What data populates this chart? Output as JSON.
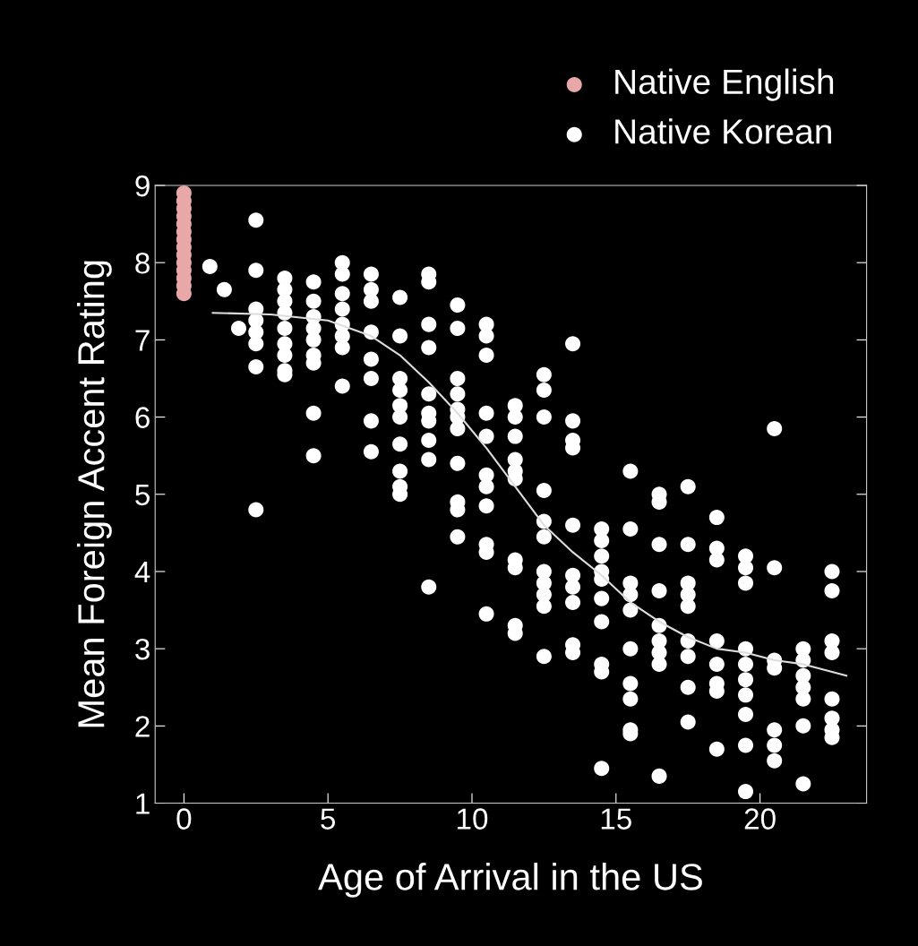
{
  "chart_data": {
    "type": "scatter",
    "xlabel": "Age of Arrival in the US",
    "ylabel": "Mean Foreign Accent Rating",
    "xlim": [
      -1.0,
      23.7
    ],
    "xticks": [
      0,
      5,
      10,
      15,
      20
    ],
    "ylim": [
      1,
      9
    ],
    "yticks": [
      1,
      2,
      3,
      4,
      5,
      6,
      7,
      8,
      9
    ],
    "marker": "circle",
    "legend": "top right",
    "grid": false,
    "series": [
      {
        "name": "Native English",
        "color": "#e8a8a8",
        "x": [
          0,
          0,
          0,
          0,
          0,
          0,
          0,
          0,
          0,
          0,
          0,
          0,
          0,
          0
        ],
        "values": [
          8.9,
          8.8,
          8.7,
          8.6,
          8.5,
          8.4,
          8.3,
          8.2,
          8.1,
          8.0,
          7.9,
          7.8,
          7.7,
          7.6
        ]
      },
      {
        "name": "Native Korean",
        "color": "#ffffff",
        "x": [
          0.9,
          1.4,
          1.9,
          2.5,
          2.5,
          2.5,
          2.5,
          2.5,
          2.5,
          2.5,
          2.5,
          3.5,
          3.5,
          3.5,
          3.5,
          3.5,
          3.5,
          3.5,
          3.5,
          3.5,
          4.5,
          4.5,
          4.5,
          4.5,
          4.5,
          4.5,
          4.5,
          4.5,
          4.5,
          5.5,
          5.5,
          5.5,
          5.5,
          5.5,
          5.5,
          5.5,
          5.5,
          6.5,
          6.5,
          6.5,
          6.5,
          6.5,
          6.5,
          6.5,
          6.5,
          7.5,
          7.5,
          7.5,
          7.5,
          7.5,
          7.5,
          7.5,
          7.5,
          7.5,
          7.5,
          8.5,
          8.5,
          8.5,
          8.5,
          8.5,
          8.5,
          8.5,
          8.5,
          8.5,
          8.5,
          9.5,
          9.5,
          9.5,
          9.5,
          9.5,
          9.5,
          9.5,
          9.5,
          9.5,
          9.5,
          9.5,
          10.5,
          10.5,
          10.5,
          10.5,
          10.5,
          10.5,
          10.5,
          10.5,
          10.5,
          10.5,
          10.5,
          11.5,
          11.5,
          11.5,
          11.5,
          11.5,
          11.5,
          11.5,
          11.5,
          11.5,
          11.5,
          12.5,
          12.5,
          12.5,
          12.5,
          12.5,
          12.5,
          12.5,
          12.5,
          12.5,
          12.5,
          12.5,
          13.5,
          13.5,
          13.5,
          13.5,
          13.5,
          13.5,
          13.5,
          13.5,
          13.5,
          13.5,
          14.5,
          14.5,
          14.5,
          14.5,
          14.5,
          14.5,
          14.5,
          14.5,
          14.5,
          14.5,
          15.5,
          15.5,
          15.5,
          15.5,
          15.5,
          15.5,
          15.5,
          15.5,
          15.5,
          15.5,
          16.5,
          16.5,
          16.5,
          16.5,
          16.5,
          16.5,
          16.5,
          16.5,
          16.5,
          17.5,
          17.5,
          17.5,
          17.5,
          17.5,
          17.5,
          17.5,
          17.5,
          17.5,
          18.5,
          18.5,
          18.5,
          18.5,
          18.5,
          18.5,
          18.5,
          18.5,
          19.5,
          19.5,
          19.5,
          19.5,
          19.5,
          19.5,
          19.5,
          19.5,
          19.5,
          19.5,
          20.5,
          20.5,
          20.5,
          20.5,
          20.5,
          20.5,
          20.5,
          21.5,
          21.5,
          21.5,
          21.5,
          21.5,
          21.5,
          21.5,
          22.5,
          22.5,
          22.5,
          22.5,
          22.5,
          22.5,
          22.5,
          22.5
        ],
        "values": [
          7.95,
          7.65,
          7.15,
          8.55,
          7.9,
          7.4,
          7.25,
          7.1,
          6.95,
          6.65,
          4.8,
          7.8,
          7.65,
          7.5,
          7.35,
          7.15,
          6.95,
          6.8,
          6.6,
          6.55,
          7.75,
          7.5,
          7.3,
          7.15,
          7.0,
          6.8,
          6.7,
          6.05,
          5.5,
          8.0,
          7.85,
          7.6,
          7.4,
          7.2,
          7.05,
          6.9,
          6.4,
          7.85,
          7.65,
          7.5,
          7.1,
          6.75,
          6.5,
          5.95,
          5.55,
          7.55,
          7.05,
          6.5,
          6.35,
          6.15,
          6.0,
          5.65,
          5.3,
          5.1,
          5.0,
          7.85,
          7.75,
          7.2,
          6.9,
          6.3,
          6.05,
          5.95,
          5.7,
          5.45,
          3.8,
          7.45,
          7.15,
          6.5,
          6.3,
          6.1,
          6.0,
          5.85,
          5.4,
          4.9,
          4.8,
          4.45,
          7.2,
          7.05,
          6.8,
          6.05,
          5.75,
          5.25,
          5.1,
          4.85,
          4.35,
          4.25,
          3.45,
          6.15,
          6.0,
          5.75,
          5.45,
          5.3,
          5.2,
          4.15,
          4.05,
          3.3,
          3.2,
          6.55,
          6.35,
          6.0,
          5.05,
          4.65,
          4.45,
          4.0,
          3.85,
          3.7,
          3.55,
          2.9,
          6.95,
          5.95,
          5.7,
          5.6,
          4.6,
          3.95,
          3.8,
          3.6,
          3.05,
          2.95,
          4.55,
          4.4,
          4.2,
          4.0,
          3.9,
          3.65,
          3.35,
          2.8,
          2.7,
          1.45,
          5.3,
          4.55,
          3.85,
          3.7,
          3.5,
          3.0,
          2.55,
          2.35,
          1.95,
          1.9,
          5.0,
          4.9,
          4.35,
          3.75,
          3.3,
          3.1,
          2.95,
          2.8,
          1.35,
          5.1,
          4.35,
          3.85,
          3.7,
          3.55,
          3.1,
          2.9,
          2.5,
          2.05,
          4.7,
          4.3,
          4.15,
          3.1,
          2.8,
          2.55,
          2.45,
          1.7,
          4.2,
          4.05,
          3.85,
          3.0,
          2.8,
          2.6,
          2.4,
          2.15,
          1.75,
          1.15,
          5.85,
          4.05,
          2.85,
          2.75,
          1.95,
          1.75,
          1.55,
          3.0,
          2.85,
          2.65,
          2.5,
          2.35,
          2.0,
          1.25,
          4.0,
          3.75,
          3.1,
          2.95,
          2.35,
          2.1,
          1.95,
          1.85
        ]
      },
      {
        "type": "line",
        "color": "#dddddd",
        "marker": "none",
        "x": [
          1,
          3,
          5,
          6.5,
          7.5,
          8.5,
          9.5,
          10.5,
          11.5,
          12.5,
          13.5,
          14.5,
          15.5,
          16.5,
          17.5,
          18.5,
          19.5,
          20.5,
          21.5,
          22.5,
          23
        ],
        "values": [
          7.35,
          7.33,
          7.25,
          7.05,
          6.8,
          6.45,
          6.05,
          5.6,
          5.1,
          4.6,
          4.25,
          3.95,
          3.6,
          3.35,
          3.15,
          3.0,
          2.95,
          2.85,
          2.8,
          2.7,
          2.65
        ]
      }
    ]
  }
}
